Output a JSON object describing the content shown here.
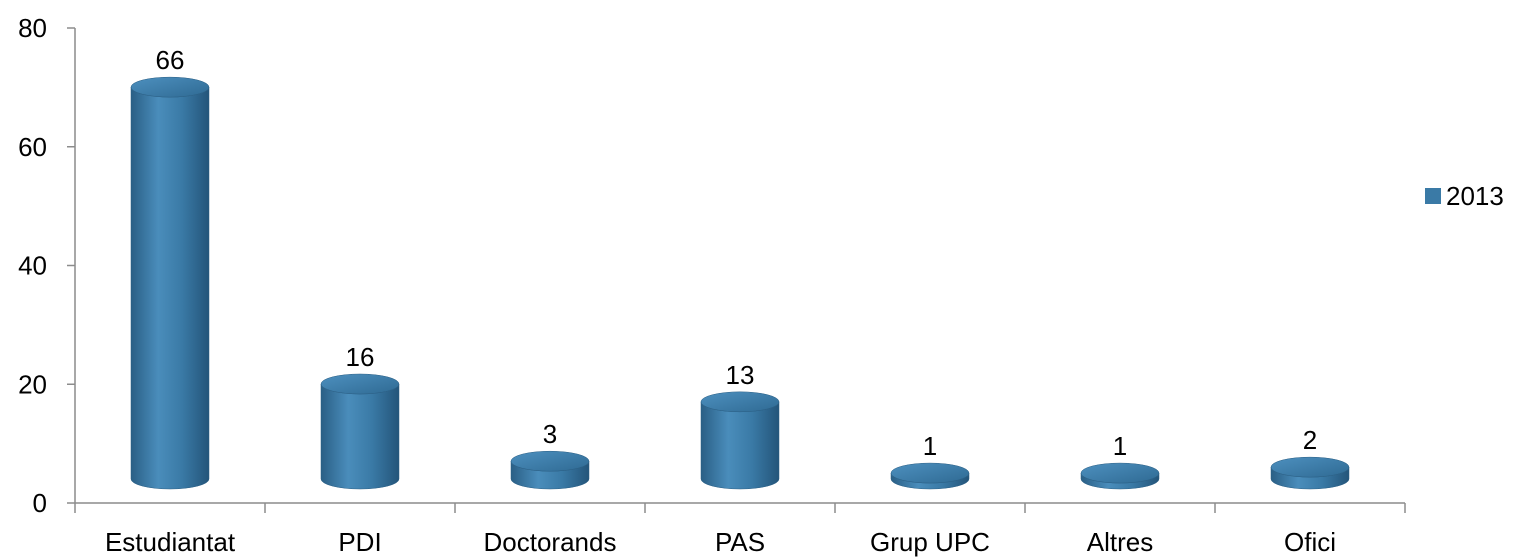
{
  "chart_data": {
    "type": "bar",
    "style": "3d-cylinder",
    "categories": [
      "Estudiantat",
      "PDI",
      "Doctorands",
      "PAS",
      "Grup UPC",
      "Altres",
      "Ofici"
    ],
    "series": [
      {
        "name": "2013",
        "values": [
          66,
          16,
          3,
          13,
          1,
          1,
          2
        ],
        "color": "#3a7aa6"
      }
    ],
    "ylim": [
      0,
      80
    ],
    "yticks": [
      "0",
      "20",
      "40",
      "60",
      "80"
    ],
    "legend_position": "right",
    "data_labels": true
  }
}
